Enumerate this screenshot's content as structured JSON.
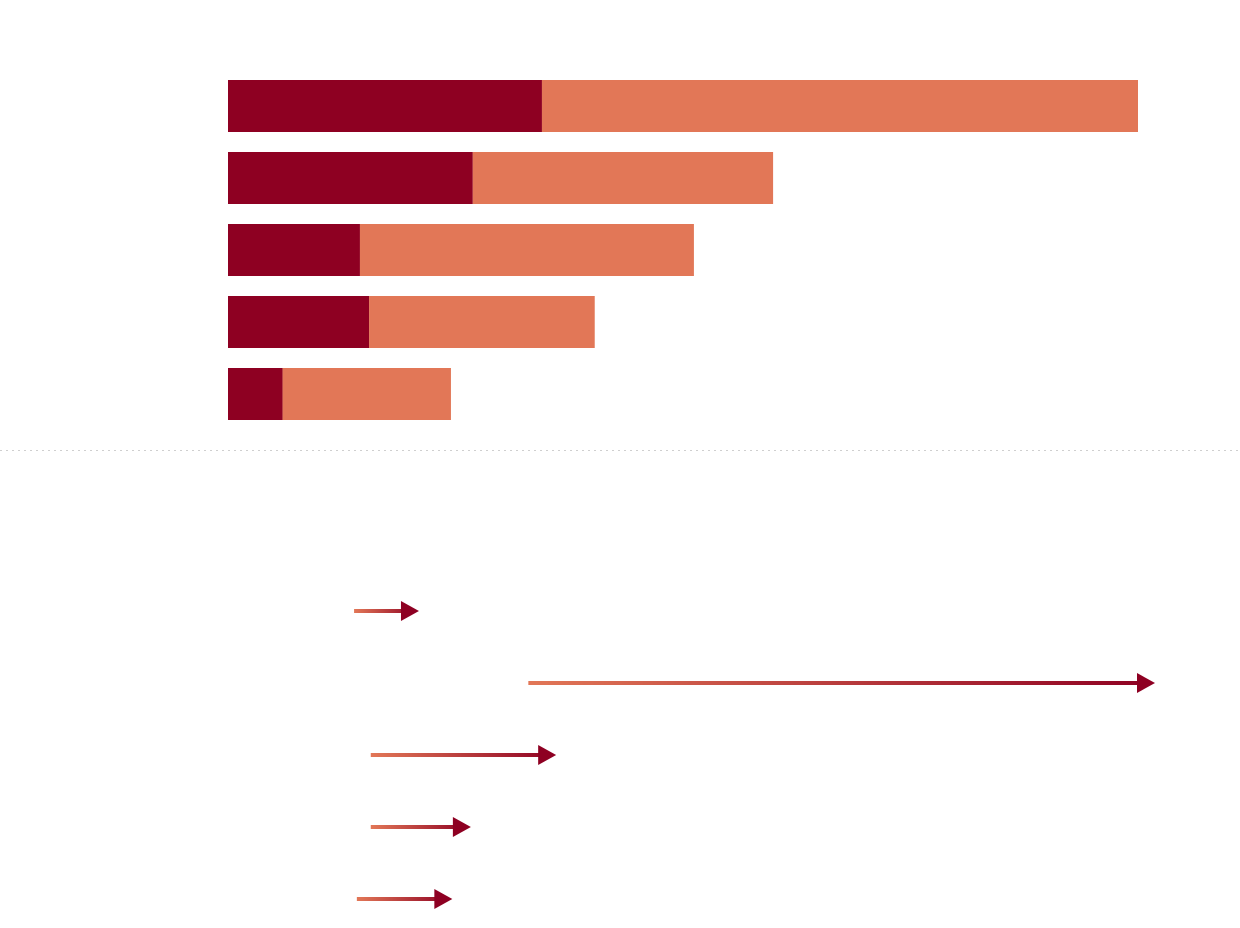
{
  "chart_data": [
    {
      "type": "stacked-bar",
      "orientation": "horizontal",
      "series": [
        {
          "color": "#8e0022",
          "values": [
            34.5,
            26.9,
            14.5,
            15.5,
            6.0
          ]
        },
        {
          "color": "#e27757",
          "values": [
            65.5,
            33.0,
            36.7,
            24.8,
            18.5
          ]
        }
      ],
      "xlim": [
        0,
        100
      ]
    },
    {
      "type": "arrow",
      "orientation": "horizontal",
      "start": [
        13.6,
        32.4,
        15.4,
        15.4,
        13.9
      ],
      "end": [
        20.6,
        100,
        35.4,
        26.2,
        24.2
      ],
      "colors": [
        "#e27757",
        "#8e0022"
      ],
      "xlim": [
        0,
        100
      ]
    }
  ]
}
